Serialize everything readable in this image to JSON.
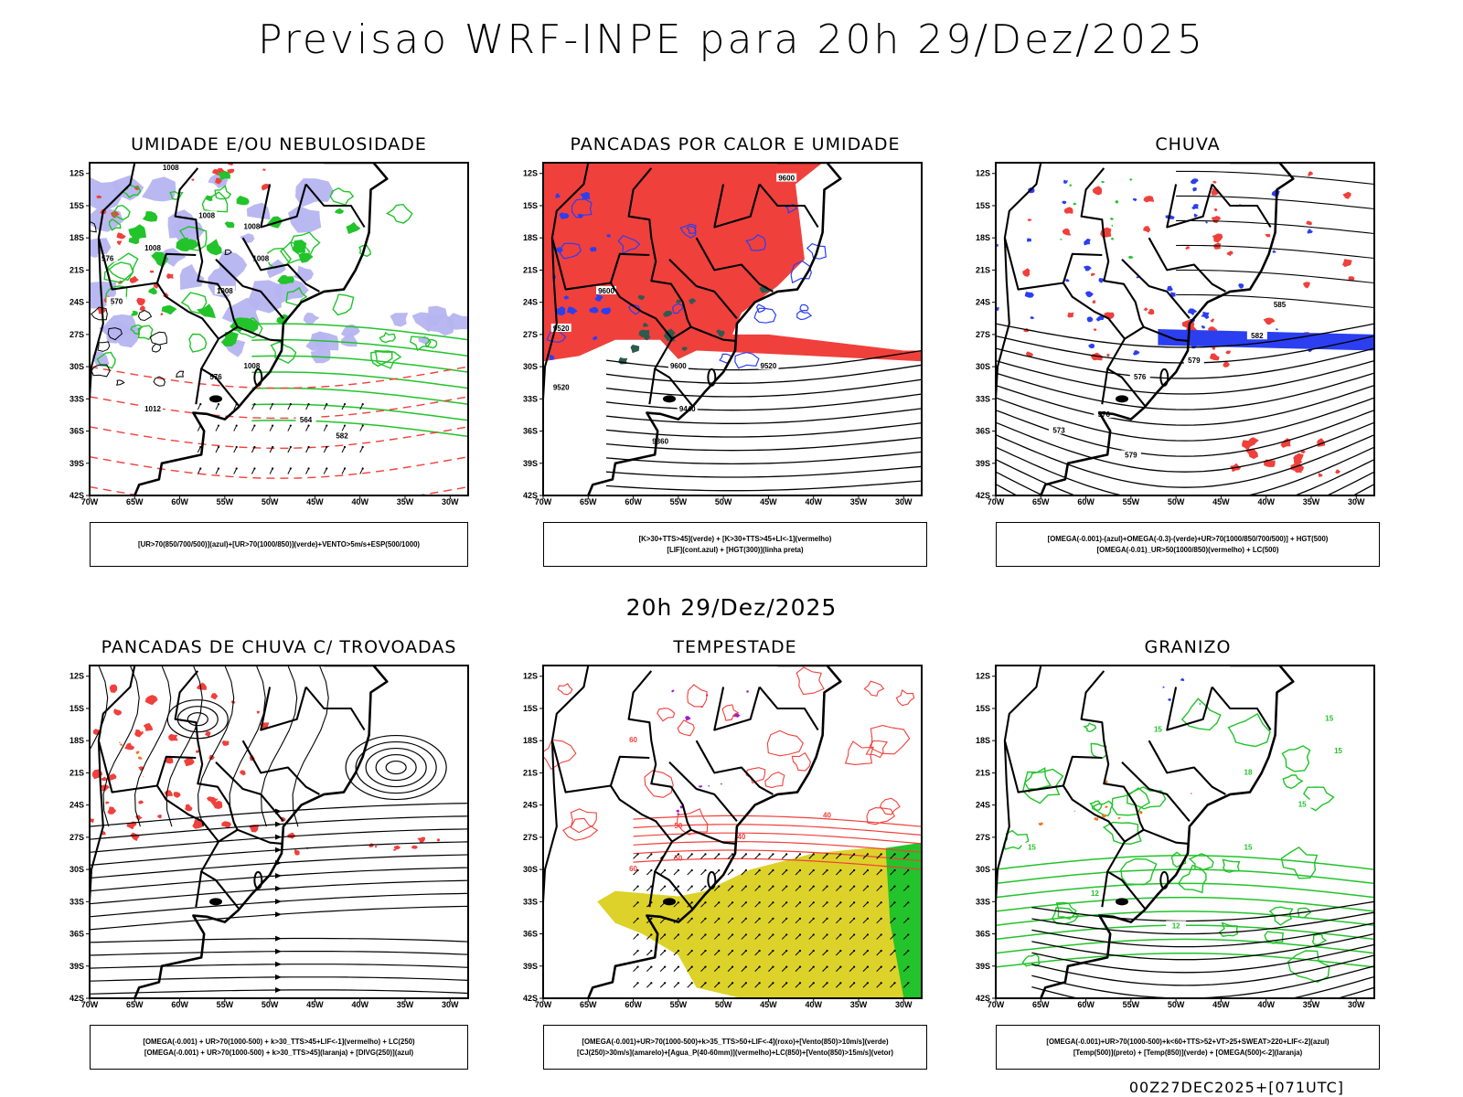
{
  "header": {
    "title": "Previsao WRF-INPE  para 20h 29/Dez/2025",
    "subtitle": "20h 29/Dez/2025",
    "footer": "00Z27DEC2025+[071UTC]"
  },
  "axes": {
    "lat_ticks": [
      "12S",
      "15S",
      "18S",
      "21S",
      "24S",
      "27S",
      "30S",
      "33S",
      "36S",
      "39S",
      "42S"
    ],
    "lon_ticks": [
      "70W",
      "65W",
      "60W",
      "55W",
      "50W",
      "45W",
      "40W",
      "35W",
      "30W"
    ]
  },
  "panels": [
    {
      "id": "umidade",
      "title": "UMIDADE E/OU NEBULOSIDADE",
      "legend": [
        "[UR>70(850/700/500)](azul)+[UR>70(1000/850)](verde)+VENTO>5m/s+ESP(500/1000)"
      ],
      "labels": [
        "1008",
        "1008",
        "1008",
        "1008",
        "1008",
        "1008",
        "1008",
        "1012",
        "576",
        "576",
        "570",
        "564",
        "582"
      ]
    },
    {
      "id": "pancadas-calor",
      "title": "PANCADAS POR CALOR E UMIDADE",
      "legend": [
        "[K>30+TTS>45](verde)  +  [K>30+TTS>45+LI<-1](vermelho)",
        "[LIF](cont.azul)  +  [HGT(300)](linha preta)"
      ],
      "labels": [
        "9600",
        "9600",
        "9520",
        "9600",
        "9520",
        "9520",
        "9440",
        "9360"
      ]
    },
    {
      "id": "chuva",
      "title": "CHUVA",
      "legend": [
        "[OMEGA(-0.001)-(azul)+OMEGA(-0.3)-(verde)+UR>70(1000/850/700/500)]  +  HGT(500)",
        "[OMEGA(-0.01)_UR>50(1000/850)(vermelho)  +  LC(500)"
      ],
      "labels": [
        "585",
        "582",
        "579",
        "576",
        "573",
        "576",
        "579"
      ]
    },
    {
      "id": "trovoadas",
      "title": "PANCADAS DE CHUVA C/ TROVOADAS",
      "legend": [
        "[OMEGA(-0.001)  +  UR>70(1000-500)  +  k>30_TTS>45+LIF<-1](vermelho)  +  LC(250)",
        "[OMEGA(-0.001)  +  UR>70(1000-500)  +  k>30_TTS>45](laranja)  +  [DIVG(250)](azul)"
      ],
      "labels": []
    },
    {
      "id": "tempestade",
      "title": "TEMPESTADE",
      "legend": [
        "[OMEGA(-0.001)+UR>70(1000-500)+k>35_TTS>50+LIF<-4](roxo)+[Vento(850)>10m/s](verde)",
        "[CJ(250)>30m/s](amarelo)+[Agua_P(40-60mm)](vermelho)+LC(850)+[Vento(850)>15m/s](vetor)"
      ],
      "labels": [
        "60",
        "50",
        "40",
        "40",
        "50",
        "60"
      ]
    },
    {
      "id": "granizo",
      "title": "GRANIZO",
      "legend": [
        "[OMEGA(-0.001)+UR>70(1000-500)+k<60+TTS>52+VT>25+SWEAT>220+LIF<-2](azul)",
        "[Temp(500)](preto)  +  [Temp(850)](verde)  +  [OMEGA(500)<-2](laranja)"
      ],
      "labels": [
        "15",
        "15",
        "15",
        "15",
        "12",
        "12",
        "15",
        "15",
        "18"
      ]
    }
  ],
  "colors": {
    "red": "#f0403c",
    "green": "#22c32b",
    "blue": "#2b3ff0",
    "lavender": "#b6b4f0",
    "darkgreen": "#2e5a50",
    "yellow": "#dcd22a",
    "purple": "#9b20c8",
    "orange": "#f07820"
  }
}
